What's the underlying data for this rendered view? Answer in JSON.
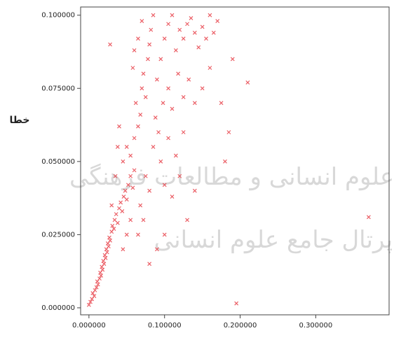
{
  "chart_data": {
    "type": "scatter",
    "y_label": "خطا",
    "watermark": [
      "ژوهشگاه علوم انسانی و مطالعات فرهنگی",
      "پرتال جامع علوم انسانی"
    ],
    "color": "#e8434b",
    "xlim": [
      -0.011,
      0.397
    ],
    "ylim": [
      -0.0024,
      0.1028
    ],
    "xticks": [
      {
        "value": 0,
        "label": "0.000000"
      },
      {
        "value": 0.1,
        "label": "0.100000"
      },
      {
        "value": 0.2,
        "label": "0.200000"
      },
      {
        "value": 0.3,
        "label": "0.300000"
      }
    ],
    "yticks": [
      {
        "value": 0,
        "label": "0.000000"
      },
      {
        "value": 0.025,
        "label": "0.025000"
      },
      {
        "value": 0.05,
        "label": "0.050000"
      },
      {
        "value": 0.075,
        "label": "0.075000"
      },
      {
        "value": 0.1,
        "label": "0.100000"
      }
    ],
    "x": [
      0.0,
      0.002,
      0.004,
      0.005,
      0.007,
      0.008,
      0.01,
      0.011,
      0.012,
      0.014,
      0.015,
      0.016,
      0.017,
      0.018,
      0.019,
      0.02,
      0.021,
      0.022,
      0.023,
      0.024,
      0.025,
      0.026,
      0.027,
      0.028,
      0.03,
      0.031,
      0.033,
      0.034,
      0.036,
      0.038,
      0.04,
      0.042,
      0.044,
      0.046,
      0.048,
      0.05,
      0.052,
      0.055,
      0.058,
      0.06,
      0.045,
      0.05,
      0.055,
      0.06,
      0.065,
      0.062,
      0.068,
      0.07,
      0.072,
      0.075,
      0.078,
      0.08,
      0.082,
      0.085,
      0.07,
      0.065,
      0.06,
      0.058,
      0.09,
      0.095,
      0.1,
      0.105,
      0.11,
      0.115,
      0.12,
      0.125,
      0.13,
      0.135,
      0.14,
      0.145,
      0.15,
      0.155,
      0.16,
      0.165,
      0.17,
      0.088,
      0.092,
      0.098,
      0.105,
      0.11,
      0.118,
      0.125,
      0.132,
      0.14,
      0.085,
      0.095,
      0.105,
      0.115,
      0.125,
      0.075,
      0.08,
      0.068,
      0.072,
      0.065,
      0.1,
      0.11,
      0.12,
      0.055,
      0.05,
      0.045,
      0.03,
      0.035,
      0.038,
      0.04,
      0.028,
      0.15,
      0.16,
      0.175,
      0.18,
      0.185,
      0.19,
      0.21,
      0.195,
      0.37,
      0.14,
      0.13,
      0.09,
      0.08,
      0.1
    ],
    "values": [
      0.001,
      0.002,
      0.003,
      0.005,
      0.004,
      0.006,
      0.007,
      0.009,
      0.008,
      0.01,
      0.012,
      0.011,
      0.014,
      0.013,
      0.016,
      0.015,
      0.018,
      0.017,
      0.02,
      0.019,
      0.022,
      0.021,
      0.024,
      0.023,
      0.026,
      0.028,
      0.027,
      0.03,
      0.032,
      0.029,
      0.034,
      0.036,
      0.033,
      0.038,
      0.04,
      0.037,
      0.042,
      0.045,
      0.041,
      0.047,
      0.05,
      0.055,
      0.052,
      0.058,
      0.062,
      0.07,
      0.066,
      0.075,
      0.08,
      0.072,
      0.085,
      0.09,
      0.095,
      0.1,
      0.098,
      0.092,
      0.088,
      0.082,
      0.078,
      0.085,
      0.092,
      0.097,
      0.1,
      0.088,
      0.095,
      0.092,
      0.097,
      0.099,
      0.094,
      0.089,
      0.096,
      0.092,
      0.1,
      0.094,
      0.098,
      0.065,
      0.06,
      0.07,
      0.075,
      0.068,
      0.08,
      0.072,
      0.078,
      0.07,
      0.055,
      0.05,
      0.058,
      0.052,
      0.06,
      0.045,
      0.04,
      0.035,
      0.03,
      0.025,
      0.042,
      0.038,
      0.045,
      0.03,
      0.025,
      0.02,
      0.035,
      0.045,
      0.055,
      0.062,
      0.09,
      0.075,
      0.082,
      0.07,
      0.05,
      0.06,
      0.085,
      0.077,
      0.0015,
      0.031,
      0.04,
      0.03,
      0.02,
      0.015,
      0.025
    ]
  }
}
